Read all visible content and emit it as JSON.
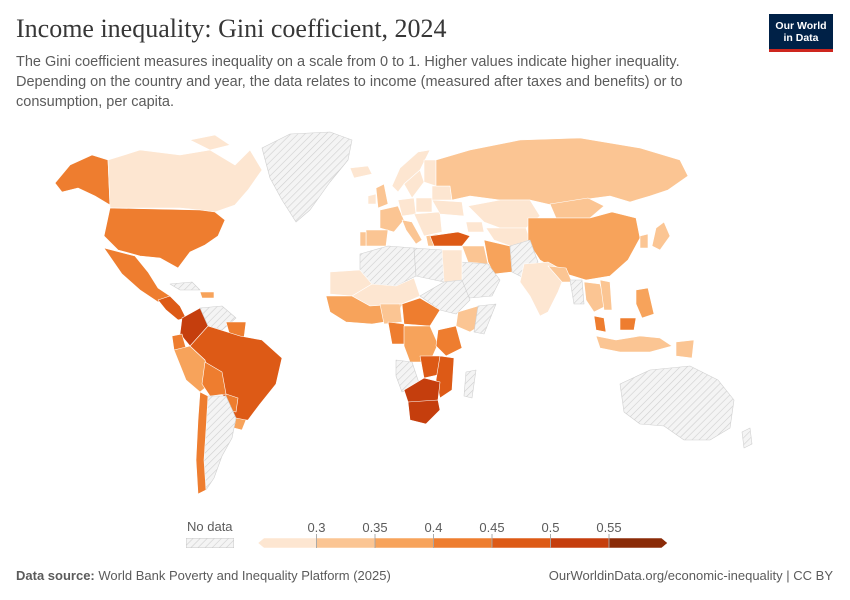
{
  "header": {
    "title": "Income inequality: Gini coefficient, 2024",
    "subtitle": "The Gini coefficient measures inequality on a scale from 0 to 1. Higher values indicate higher inequality. Depending on the country and year, the data relates to income (measured after taxes and benefits) or to consumption, per capita."
  },
  "logo": {
    "line1": "Our World",
    "line2": "in Data"
  },
  "legend": {
    "no_data_label": "No data",
    "ticks": [
      "0.3",
      "0.35",
      "0.4",
      "0.45",
      "0.5",
      "0.55"
    ],
    "colors": [
      "#fde6d1",
      "#fbc593",
      "#f7a35b",
      "#ee7d2f",
      "#dd5a16",
      "#c53e0d",
      "#8a2b08"
    ],
    "no_data_color": "#e8e8e8"
  },
  "footer": {
    "source_label": "Data source:",
    "source_text": "World Bank Poverty and Inequality Platform (2025)",
    "url_text": "OurWorldinData.org/economic-inequality | CC BY"
  }
}
